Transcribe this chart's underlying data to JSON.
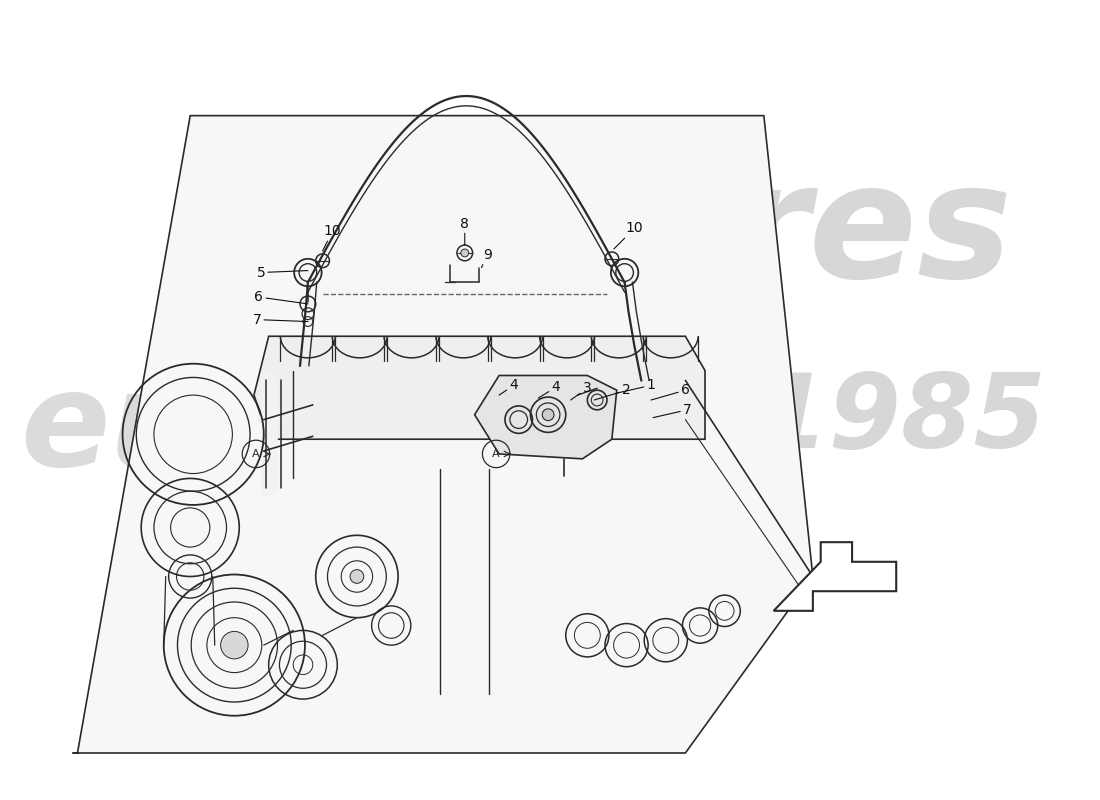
{
  "bg_color": "#ffffff",
  "line_color": "#2a2a2a",
  "lw_main": 1.0,
  "lw_thick": 1.6,
  "label_fontsize": 10,
  "watermark_res_color": "#d0d0d0",
  "watermark_1985_color": "#d0d0d0",
  "watermark_eu_color": "#d0d0d0",
  "watermark_passion_color": "#c8c870",
  "part_numbers": [
    "1",
    "2",
    "3",
    "4",
    "4",
    "5",
    "6",
    "7",
    "8",
    "9",
    "10",
    "10",
    "6",
    "7"
  ],
  "arrow_outline_color": "#2a2a2a"
}
